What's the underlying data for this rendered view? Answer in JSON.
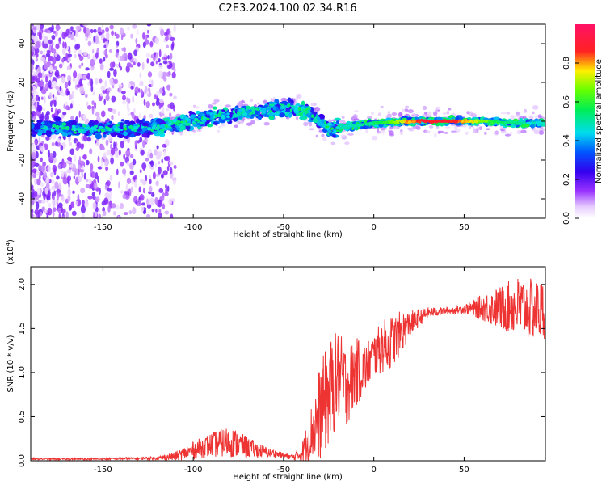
{
  "title": "C2E3.2024.100.02.34.R16",
  "colors": {
    "signal": "#ee3333",
    "axis": "#000000",
    "spectrum_low": "#e8d0ff",
    "spectrum_mid": "#6a00ee",
    "spectrum_high": "#ff1a3c"
  },
  "chart_data": [
    {
      "id": "spectrogram",
      "type": "heatmap",
      "xlabel": "Height of straight line (km)",
      "ylabel": "Frequency (Hz)",
      "xlim": [
        -190,
        95
      ],
      "ylim": [
        -50,
        50
      ],
      "xticks": [
        -150,
        -100,
        -50,
        0,
        50
      ],
      "xtick_labels": [
        "-150",
        "-100",
        "-50",
        "0",
        "50"
      ],
      "yticks": [
        -40,
        -20,
        0,
        20,
        40
      ],
      "ytick_labels": [
        "-40",
        "-20",
        "0",
        "20",
        "40"
      ],
      "ridge": {
        "x": [
          -190,
          -160,
          -130,
          -110,
          -90,
          -70,
          -55,
          -45,
          -35,
          -25,
          -15,
          0,
          20,
          40,
          60,
          80,
          95
        ],
        "y": [
          -3,
          -4,
          -4,
          -2,
          2,
          5,
          6,
          7,
          4,
          -4,
          -3,
          -1,
          0,
          0,
          0,
          -1,
          -1
        ]
      },
      "colorbar": {
        "label": "Normalized spectral amplitude",
        "range": [
          0,
          1
        ],
        "ticks": [
          0.0,
          0.2,
          0.4,
          0.6,
          0.8
        ],
        "tick_labels": [
          "0.0",
          "0.2",
          "0.4",
          "0.6",
          "0.8"
        ]
      }
    },
    {
      "id": "snr",
      "type": "line",
      "xlabel": "Height of straight line (km)",
      "ylabel": "SNR (10 * v/v)",
      "yscale_label": "(x10",
      "yscale_exp": "4",
      "yscale_close": ")",
      "xlim": [
        -190,
        95
      ],
      "ylim": [
        0,
        2.2
      ],
      "xticks": [
        -150,
        -100,
        -50,
        0,
        50
      ],
      "xtick_labels": [
        "-150",
        "-100",
        "-50",
        "0",
        "50"
      ],
      "yticks": [
        0.0,
        0.5,
        1.0,
        1.5,
        2.0
      ],
      "ytick_labels": [
        "0.0",
        "0.5",
        "1.0",
        "1.5",
        "2.0"
      ],
      "series": [
        {
          "name": "SNR",
          "x": [
            -190,
            -150,
            -120,
            -110,
            -100,
            -90,
            -80,
            -70,
            -60,
            -50,
            -45,
            -40,
            -35,
            -30,
            -25,
            -20,
            -15,
            -10,
            -5,
            0,
            5,
            10,
            15,
            20,
            25,
            30,
            40,
            50,
            60,
            70,
            80,
            90,
            95
          ],
          "y": [
            0.02,
            0.02,
            0.03,
            0.05,
            0.12,
            0.18,
            0.22,
            0.15,
            0.1,
            0.06,
            0.04,
            0.08,
            0.3,
            0.55,
            0.75,
            0.95,
            0.85,
            1.0,
            1.05,
            1.2,
            1.3,
            1.35,
            1.45,
            1.55,
            1.62,
            1.68,
            1.7,
            1.72,
            1.74,
            1.73,
            1.75,
            1.7,
            1.72
          ],
          "noise": [
            0.01,
            0.01,
            0.02,
            0.05,
            0.1,
            0.14,
            0.18,
            0.12,
            0.06,
            0.03,
            0.03,
            0.1,
            0.3,
            0.55,
            0.6,
            0.55,
            0.45,
            0.4,
            0.3,
            0.25,
            0.3,
            0.3,
            0.25,
            0.15,
            0.1,
            0.06,
            0.04,
            0.05,
            0.15,
            0.25,
            0.35,
            0.35,
            0.35
          ]
        }
      ]
    }
  ]
}
